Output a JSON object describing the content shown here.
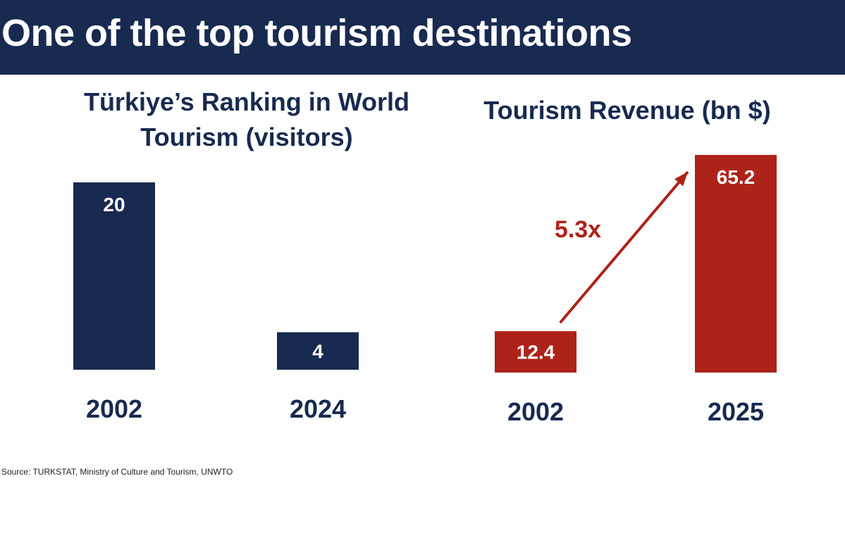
{
  "header": {
    "title": "One of the top tourism destinations"
  },
  "colors": {
    "navy": "#182a50",
    "red": "#ad2319",
    "white": "#ffffff"
  },
  "chart_data": [
    {
      "type": "bar",
      "title": "Türkiye’s Ranking in World Tourism (visitors)",
      "title_lines": [
        "Türkiye’s Ranking in World",
        "Tourism (visitors)"
      ],
      "categories": [
        "2002",
        "2024"
      ],
      "values": [
        20,
        4
      ],
      "value_labels": [
        "20",
        "4"
      ],
      "ylim": [
        0,
        20
      ],
      "color": "#182a50",
      "grid": false
    },
    {
      "type": "bar",
      "title": "Tourism Revenue (bn $)",
      "categories": [
        "2002",
        "2025"
      ],
      "values": [
        12.4,
        65.2
      ],
      "value_labels": [
        "12.4",
        "65.2"
      ],
      "ylim": [
        0,
        65.2
      ],
      "color": "#ad2319",
      "grid": false,
      "annotation": {
        "text": "5.3x",
        "from": "2002",
        "to": "2025"
      }
    }
  ],
  "footer": {
    "source": "Source: TURKSTAT, Ministry of Culture and Tourism, UNWTO"
  }
}
